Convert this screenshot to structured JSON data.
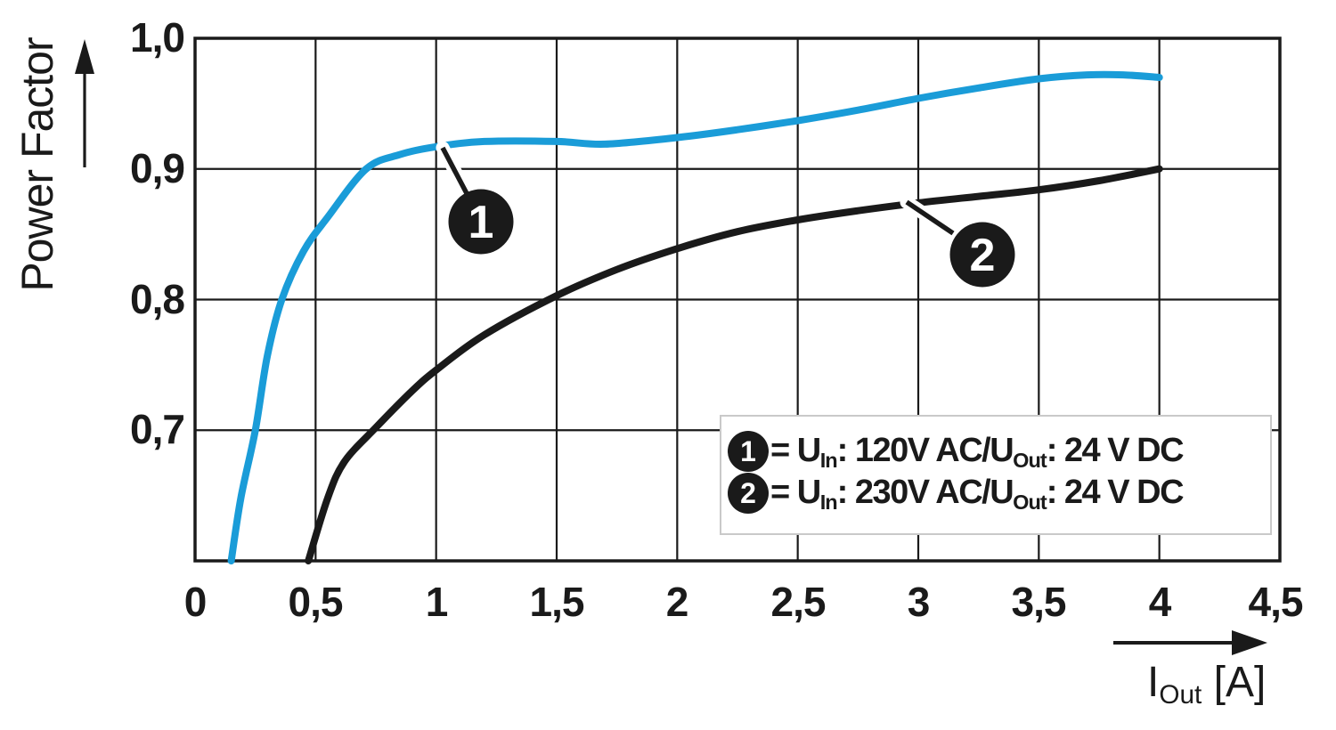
{
  "axes": {
    "y_label": "Power Factor",
    "x_label": {
      "base": "I",
      "sub": "Out",
      "unit": " [A]"
    }
  },
  "chart_data": {
    "type": "line",
    "title": "",
    "xlabel": "I_Out [A]",
    "ylabel": "Power Factor",
    "xlim": [
      0,
      4.5
    ],
    "ylim": [
      0.6,
      1.0
    ],
    "grid": true,
    "legend_position": "inside-bottom-right",
    "x_ticks": [
      0,
      0.5,
      1,
      1.5,
      2,
      2.5,
      3,
      3.5,
      4,
      4.5
    ],
    "x_tick_labels": [
      "0",
      "0,5",
      "1",
      "1,5",
      "2",
      "2,5",
      "3",
      "3,5",
      "4",
      "4,5"
    ],
    "y_ticks": [
      1.0,
      0.9,
      0.8,
      0.7
    ],
    "y_tick_labels": [
      "1,0",
      "0,9",
      "0,8",
      "0,7"
    ],
    "series": [
      {
        "name": "1",
        "label": "U_In: 120V AC / U_Out: 24 V DC",
        "color": "#1a9cd8",
        "points": [
          [
            0.15,
            0.6
          ],
          [
            0.19,
            0.648
          ],
          [
            0.25,
            0.7
          ],
          [
            0.3,
            0.757
          ],
          [
            0.36,
            0.8
          ],
          [
            0.45,
            0.837
          ],
          [
            0.55,
            0.863
          ],
          [
            0.71,
            0.9
          ],
          [
            0.85,
            0.911
          ],
          [
            1.0,
            0.917
          ],
          [
            1.2,
            0.921
          ],
          [
            1.5,
            0.921
          ],
          [
            1.7,
            0.919
          ],
          [
            2.0,
            0.924
          ],
          [
            2.25,
            0.93
          ],
          [
            2.5,
            0.937
          ],
          [
            2.75,
            0.945
          ],
          [
            3.0,
            0.954
          ],
          [
            3.25,
            0.962
          ],
          [
            3.5,
            0.969
          ],
          [
            3.7,
            0.972
          ],
          [
            3.85,
            0.972
          ],
          [
            4.0,
            0.97
          ]
        ]
      },
      {
        "name": "2",
        "label": "U_In: 230V AC / U_Out: 24 V DC",
        "color": "#1a1a1a",
        "points": [
          [
            0.47,
            0.6
          ],
          [
            0.55,
            0.648
          ],
          [
            0.62,
            0.676
          ],
          [
            0.75,
            0.702
          ],
          [
            0.9,
            0.73
          ],
          [
            1.0,
            0.746
          ],
          [
            1.2,
            0.773
          ],
          [
            1.5,
            0.803
          ],
          [
            1.75,
            0.823
          ],
          [
            2.0,
            0.839
          ],
          [
            2.25,
            0.852
          ],
          [
            2.5,
            0.861
          ],
          [
            2.75,
            0.868
          ],
          [
            3.0,
            0.874
          ],
          [
            3.25,
            0.879
          ],
          [
            3.5,
            0.884
          ],
          [
            3.75,
            0.891
          ],
          [
            4.0,
            0.9
          ]
        ]
      }
    ]
  },
  "markers": [
    {
      "label": "1"
    },
    {
      "label": "2"
    }
  ],
  "legend": {
    "items": [
      {
        "badge": "1",
        "pre": "= U",
        "sub1": "In",
        "mid": ": 120V AC/U",
        "sub2": "Out",
        "post": ": 24 V DC"
      },
      {
        "badge": "2",
        "pre": "= U",
        "sub1": "In",
        "mid": ": 230V AC/U",
        "sub2": "Out",
        "post": ": 24 V DC"
      }
    ]
  },
  "colors": {
    "curve1": "#1a9cd8",
    "curve2": "#1a1a1a",
    "grid": "#1a1a1a",
    "legend_border": "#c9c9c9",
    "background": "#ffffff"
  }
}
